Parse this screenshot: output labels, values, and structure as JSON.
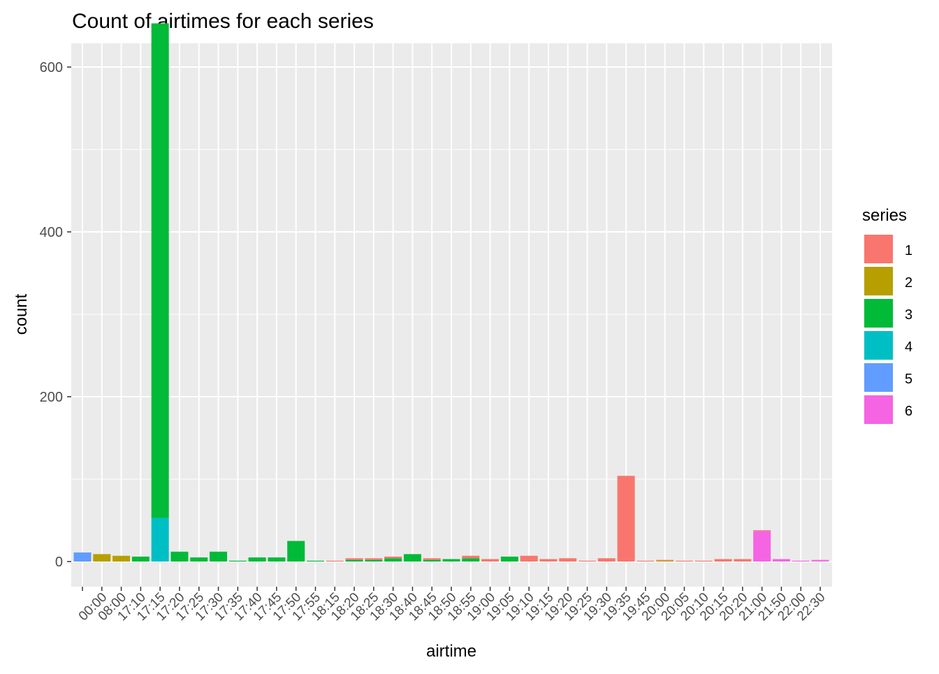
{
  "chart_data": {
    "type": "bar",
    "title": "Count of airtimes for each series",
    "xlabel": "airtime",
    "ylabel": "count",
    "ylim": [
      0,
      630
    ],
    "yticks": [
      0,
      200,
      400,
      600
    ],
    "grid": true,
    "stacked": true,
    "legend": {
      "title": "series",
      "position": "right",
      "entries": [
        "1",
        "2",
        "3",
        "4",
        "5",
        "6"
      ]
    },
    "series_colors": {
      "1": "#F8766D",
      "2": "#B79F00",
      "3": "#00BA38",
      "4": "#00BFC4",
      "5": "#619CFF",
      "6": "#F564E3"
    },
    "panel_background": "#EBEBEB",
    "categories": [
      "00:00",
      "08:00",
      "17:10",
      "17:15",
      "17:20",
      "17:25",
      "17:30",
      "17:35",
      "17:40",
      "17:45",
      "17:50",
      "17:55",
      "18:15",
      "18:20",
      "18:25",
      "18:30",
      "18:40",
      "18:45",
      "18:50",
      "18:55",
      "19:00",
      "19:05",
      "19:10",
      "19:15",
      "19:20",
      "19:25",
      "19:30",
      "19:35",
      "19:45",
      "20:00",
      "20:05",
      "20:10",
      "20:15",
      "20:20",
      "21:00",
      "21:50",
      "22:00",
      "22:30"
    ],
    "bars": [
      {
        "x": "00:00",
        "series": "5",
        "value": 11
      },
      {
        "x": "08:00",
        "series": "2",
        "value": 9
      },
      {
        "x": "17:10",
        "series": "2",
        "value": 7
      },
      {
        "x": "17:15",
        "series": "3",
        "value": 6
      },
      {
        "x": "17:20",
        "series": "3",
        "value": 600
      },
      {
        "x": "17:20",
        "series": "4",
        "value": 53
      },
      {
        "x": "17:25",
        "series": "3",
        "value": 12
      },
      {
        "x": "17:30",
        "series": "3",
        "value": 5
      },
      {
        "x": "17:35",
        "series": "3",
        "value": 12
      },
      {
        "x": "17:40",
        "series": "3",
        "value": 1
      },
      {
        "x": "17:45",
        "series": "3",
        "value": 5
      },
      {
        "x": "17:50",
        "series": "3",
        "value": 5
      },
      {
        "x": "17:55",
        "series": "3",
        "value": 25
      },
      {
        "x": "18:15",
        "series": "3",
        "value": 1
      },
      {
        "x": "18:20",
        "series": "1",
        "value": 1
      },
      {
        "x": "18:25",
        "series": "1",
        "value": 2
      },
      {
        "x": "18:25",
        "series": "3",
        "value": 2
      },
      {
        "x": "18:30",
        "series": "1",
        "value": 2
      },
      {
        "x": "18:30",
        "series": "3",
        "value": 2
      },
      {
        "x": "18:40",
        "series": "1",
        "value": 2
      },
      {
        "x": "18:40",
        "series": "3",
        "value": 4
      },
      {
        "x": "18:45",
        "series": "3",
        "value": 9
      },
      {
        "x": "18:50",
        "series": "1",
        "value": 2
      },
      {
        "x": "18:50",
        "series": "3",
        "value": 2
      },
      {
        "x": "18:55",
        "series": "3",
        "value": 3
      },
      {
        "x": "19:00",
        "series": "1",
        "value": 3
      },
      {
        "x": "19:00",
        "series": "3",
        "value": 4
      },
      {
        "x": "19:05",
        "series": "1",
        "value": 3
      },
      {
        "x": "19:10",
        "series": "3",
        "value": 6
      },
      {
        "x": "19:15",
        "series": "1",
        "value": 7
      },
      {
        "x": "19:20",
        "series": "1",
        "value": 3
      },
      {
        "x": "19:25",
        "series": "1",
        "value": 4
      },
      {
        "x": "19:30",
        "series": "1",
        "value": 1
      },
      {
        "x": "19:35",
        "series": "1",
        "value": 4
      },
      {
        "x": "19:45",
        "series": "1",
        "value": 104
      },
      {
        "x": "20:00",
        "series": "1",
        "value": 1
      },
      {
        "x": "20:05",
        "series": "1",
        "value": 1
      },
      {
        "x": "20:05",
        "series": "2",
        "value": 1
      },
      {
        "x": "20:10",
        "series": "1",
        "value": 1
      },
      {
        "x": "20:15",
        "series": "1",
        "value": 1
      },
      {
        "x": "20:20",
        "series": "1",
        "value": 3
      },
      {
        "x": "21:00",
        "series": "1",
        "value": 3
      },
      {
        "x": "21:50",
        "series": "1",
        "value": 1
      },
      {
        "x": "21:50",
        "series": "6",
        "value": 37
      },
      {
        "x": "22:00",
        "series": "6",
        "value": 3
      },
      {
        "x": "22:30",
        "series": "6",
        "value": 1
      }
    ],
    "extra_bar_after_last": [
      {
        "series": "6",
        "value": 1
      },
      {
        "series": "6",
        "value": 1
      }
    ]
  }
}
